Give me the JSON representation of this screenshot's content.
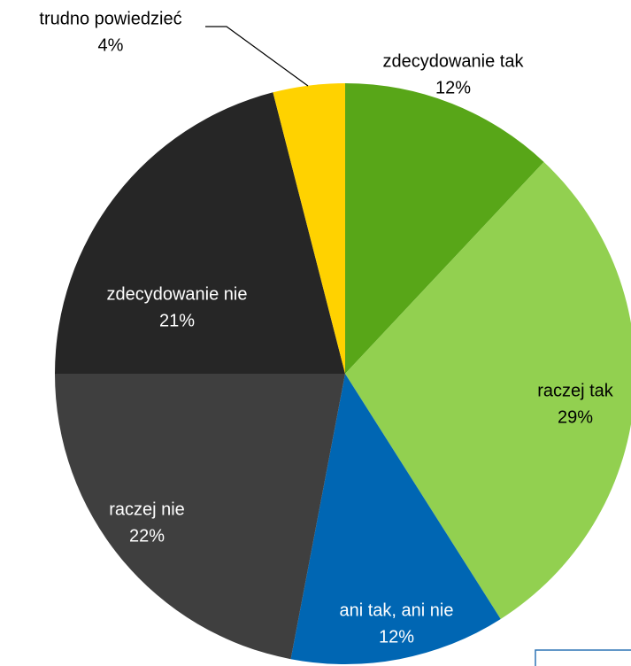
{
  "chart_data": {
    "type": "pie",
    "categories": [
      "zdecydowanie tak",
      "raczej tak",
      "ani tak, ani nie",
      "raczej nie",
      "zdecydowanie nie",
      "trudno powiedzieć"
    ],
    "values": [
      12,
      29,
      12,
      22,
      21,
      4
    ],
    "value_labels": [
      "12%",
      "29%",
      "12%",
      "22%",
      "21%",
      "4%"
    ],
    "colors": [
      "#58a618",
      "#92d050",
      "#0066b3",
      "#3f3f3f",
      "#262626",
      "#ffd200"
    ]
  }
}
